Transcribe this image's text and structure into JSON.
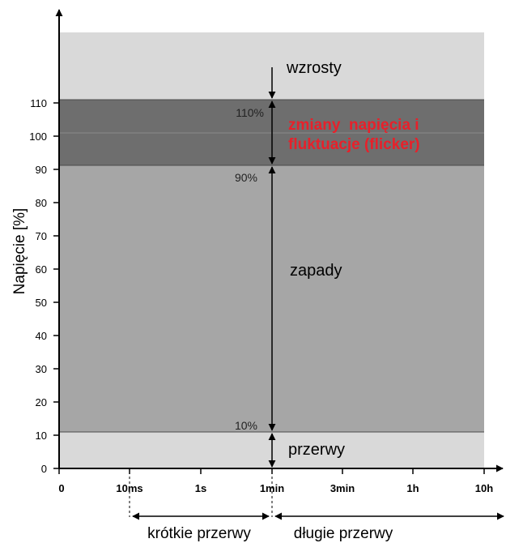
{
  "chart_data": {
    "type": "region-diagram",
    "ylabel": "Napięcie [%]",
    "y_ticks": [
      "0",
      "10",
      "20",
      "30",
      "40",
      "50",
      "60",
      "70",
      "80",
      "90",
      "100",
      "110"
    ],
    "x_ticks": [
      "0",
      "10ms",
      "1s",
      "1min",
      "3min",
      "1h",
      "10h"
    ],
    "ylim": [
      0,
      110
    ],
    "regions": [
      {
        "name": "wzrosty",
        "label": "wzrosty",
        "y_from": 110,
        "y_to": null,
        "color": "#d9d9d9"
      },
      {
        "name": "zmiany",
        "label_lines": [
          "zmiany  napięcia i",
          "fluktuacje (flicker)"
        ],
        "y_from": 90,
        "y_to": 110,
        "color": "#6e6e6e",
        "text_color": "#e8202a"
      },
      {
        "name": "zapady",
        "label": "zapady",
        "y_from": 10,
        "y_to": 90,
        "color": "#a6a6a6"
      },
      {
        "name": "przerwy",
        "label": "przerwy",
        "y_from": 0,
        "y_to": 10,
        "color": "#d9d9d9"
      }
    ],
    "percent_marks": [
      "110%",
      "90%",
      "10%"
    ],
    "bottom_labels": {
      "short": "krótkie przerwy",
      "long": "długie przerwy"
    }
  }
}
